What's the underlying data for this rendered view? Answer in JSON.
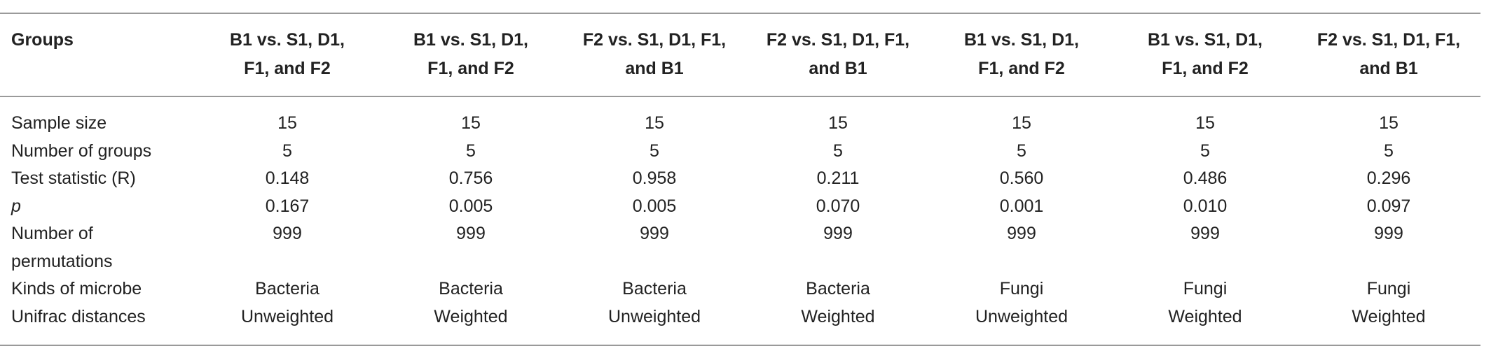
{
  "table": {
    "header": [
      [
        "Groups"
      ],
      [
        "B1 vs. S1, D1,",
        "F1, and F2"
      ],
      [
        "B1 vs. S1, D1,",
        "F1, and F2"
      ],
      [
        "F2 vs. S1, D1, F1,",
        "and B1"
      ],
      [
        "F2 vs. S1, D1, F1,",
        "and B1"
      ],
      [
        "B1 vs. S1, D1,",
        "F1, and F2"
      ],
      [
        "B1 vs. S1, D1,",
        "F1, and F2"
      ],
      [
        "F2 vs. S1, D1, F1,",
        "and B1"
      ]
    ],
    "rows": [
      [
        "Sample size",
        "15",
        "15",
        "15",
        "15",
        "15",
        "15",
        "15"
      ],
      [
        "Number of groups",
        "5",
        "5",
        "5",
        "5",
        "5",
        "5",
        "5"
      ],
      [
        "Test statistic (R)",
        "0.148",
        "0.756",
        "0.958",
        "0.211",
        "0.560",
        "0.486",
        "0.296"
      ],
      [
        "p",
        "0.167",
        "0.005",
        "0.005",
        "0.070",
        "0.001",
        "0.010",
        "0.097"
      ],
      [
        "Number of permutations",
        "999",
        "999",
        "999",
        "999",
        "999",
        "999",
        "999"
      ],
      [
        "Kinds of microbe",
        "Bacteria",
        "Bacteria",
        "Bacteria",
        "Bacteria",
        "Fungi",
        "Fungi",
        "Fungi"
      ],
      [
        "Unifrac distances",
        "Unweighted",
        "Weighted",
        "Unweighted",
        "Weighted",
        "Unweighted",
        "Weighted",
        "Weighted"
      ]
    ]
  }
}
